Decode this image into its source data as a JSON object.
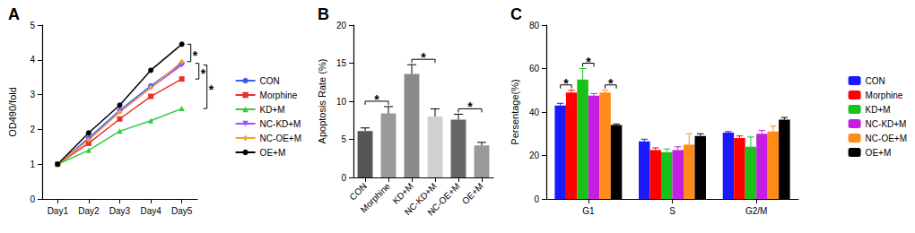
{
  "chart_data": [
    {
      "type": "line",
      "title": "A",
      "categories": [
        "Day1",
        "Day2",
        "Day3",
        "Day4",
        "Day5"
      ],
      "y_label": "OD490/fold",
      "ylim": [
        0,
        5
      ],
      "yticks": [
        0,
        1,
        2,
        3,
        4,
        5
      ],
      "grid": false,
      "legend": "right",
      "series": [
        {
          "name": "CON",
          "color": "#3b5bff",
          "marker": "circle",
          "values": [
            1,
            1.75,
            2.55,
            3.25,
            3.9
          ]
        },
        {
          "name": "Morphine",
          "color": "#e8312e",
          "marker": "square",
          "values": [
            1,
            1.6,
            2.3,
            2.95,
            3.45
          ]
        },
        {
          "name": "KD+M",
          "color": "#2ecc40",
          "marker": "triangle",
          "values": [
            1,
            1.4,
            1.95,
            2.25,
            2.6
          ]
        },
        {
          "name": "NC-KD+M",
          "color": "#a64dff",
          "marker": "triangle-down",
          "values": [
            1,
            1.7,
            2.5,
            3.2,
            3.85
          ]
        },
        {
          "name": "NC-OE+M",
          "color": "#f5a030",
          "marker": "diamond",
          "values": [
            1,
            1.7,
            2.5,
            3.2,
            3.95
          ]
        },
        {
          "name": "OE+M",
          "color": "#000000",
          "marker": "circle",
          "values": [
            1,
            1.9,
            2.7,
            3.7,
            4.45
          ]
        }
      ],
      "annotations": [
        {
          "text": "*",
          "category": "Day5",
          "pair": [
            "OE+M",
            "NC-OE+M"
          ]
        },
        {
          "text": "*",
          "category": "Day5",
          "pair": [
            "CON",
            "Morphine"
          ]
        },
        {
          "text": "*",
          "category": "Day5",
          "pair": [
            "NC-KD+M",
            "KD+M"
          ]
        }
      ]
    },
    {
      "type": "bar",
      "title": "B",
      "categories": [
        "CON",
        "Morphine",
        "KD+M",
        "NC-KD+M",
        "NC-OE+M",
        "OE+M"
      ],
      "values": [
        6.1,
        8.4,
        13.6,
        8.0,
        7.6,
        4.2
      ],
      "errors": [
        0.4,
        0.9,
        1.2,
        1.0,
        0.7,
        0.4
      ],
      "colors": [
        "#555555",
        "#999999",
        "#8a8a8a",
        "#d0d0d0",
        "#666666",
        "#9a9a9a"
      ],
      "y_label": "Apoptosis Rate (%)",
      "ylim": [
        0,
        20
      ],
      "yticks": [
        0,
        5,
        10,
        15,
        20
      ],
      "grid": false,
      "annotations": [
        {
          "text": "*",
          "pair": [
            "CON",
            "Morphine"
          ]
        },
        {
          "text": "*",
          "pair": [
            "KD+M",
            "NC-KD+M"
          ]
        },
        {
          "text": "*",
          "pair": [
            "NC-OE+M",
            "OE+M"
          ]
        }
      ]
    },
    {
      "type": "bar",
      "title": "C",
      "categories": [
        "G1",
        "S",
        "G2/M"
      ],
      "y_label": "Persentage(%)",
      "ylim": [
        0,
        80
      ],
      "yticks": [
        0,
        20,
        40,
        60,
        80
      ],
      "grid": false,
      "legend": "right",
      "series": [
        {
          "name": "CON",
          "color": "#1a1aff",
          "values": [
            43,
            26.5,
            30.5
          ],
          "errors": [
            1,
            1,
            0.5
          ]
        },
        {
          "name": "Morphine",
          "color": "#ff0000",
          "values": [
            49,
            22.5,
            28
          ],
          "errors": [
            1,
            1,
            1
          ]
        },
        {
          "name": "KD+M",
          "color": "#19c219",
          "values": [
            55,
            21.5,
            24
          ],
          "errors": [
            5,
            1.5,
            4.5
          ]
        },
        {
          "name": "NC-KD+M",
          "color": "#c51ee0",
          "values": [
            47.5,
            22.5,
            30
          ],
          "errors": [
            1,
            1.5,
            1.5
          ]
        },
        {
          "name": "NC-OE+M",
          "color": "#ff8c1a",
          "values": [
            49,
            25,
            31
          ],
          "errors": [
            1,
            5,
            2.5
          ]
        },
        {
          "name": "OE+M",
          "color": "#000000",
          "values": [
            34,
            29,
            36.5
          ],
          "errors": [
            0.5,
            1,
            1
          ]
        }
      ],
      "annotations": [
        {
          "text": "*",
          "category": "G1",
          "pair": [
            "CON",
            "Morphine"
          ]
        },
        {
          "text": "*",
          "category": "G1",
          "pair": [
            "KD+M",
            "NC-KD+M"
          ]
        },
        {
          "text": "*",
          "category": "G1",
          "pair": [
            "NC-OE+M",
            "OE+M"
          ]
        }
      ]
    }
  ]
}
